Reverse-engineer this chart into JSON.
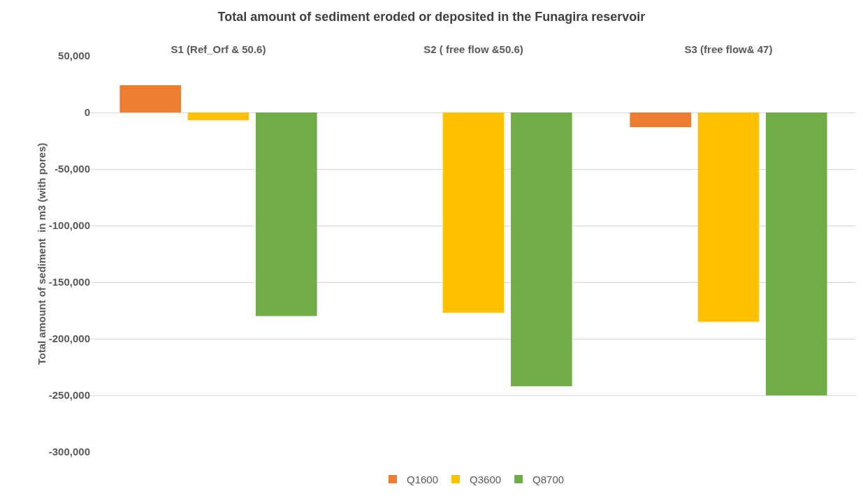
{
  "chart_data": {
    "type": "bar",
    "title": "Total amount of sediment eroded or deposited in the Funagira reservoir",
    "ylabel": "Total amount of sediment  in m3 (with pores)",
    "categories": [
      "S1 (Ref_Orf & 50.6)",
      "S2 ( free flow &50.6)",
      "S3 (free flow& 47)"
    ],
    "series": [
      {
        "name": "Q1600",
        "color": "#ed7d31",
        "values": [
          24000,
          0,
          -13000
        ]
      },
      {
        "name": "Q3600",
        "color": "#ffc000",
        "values": [
          -7000,
          -177000,
          -185000
        ]
      },
      {
        "name": "Q8700",
        "color": "#70ad47",
        "values": [
          -180000,
          -242000,
          -250000
        ]
      }
    ],
    "ylim": [
      -300000,
      50000
    ],
    "yticks": [
      {
        "value": 50000,
        "label": "50,000"
      },
      0,
      {
        "value": -50000,
        "label": "-50,000"
      },
      {
        "value": -100000,
        "label": "-100,000"
      },
      {
        "value": -150000,
        "label": "-150,000"
      },
      {
        "value": -200000,
        "label": "-200,000"
      },
      {
        "value": -250000,
        "label": "-250,000"
      },
      {
        "value": -300000,
        "label": "-300,000"
      }
    ],
    "grid": "y",
    "legend": "bottom"
  }
}
